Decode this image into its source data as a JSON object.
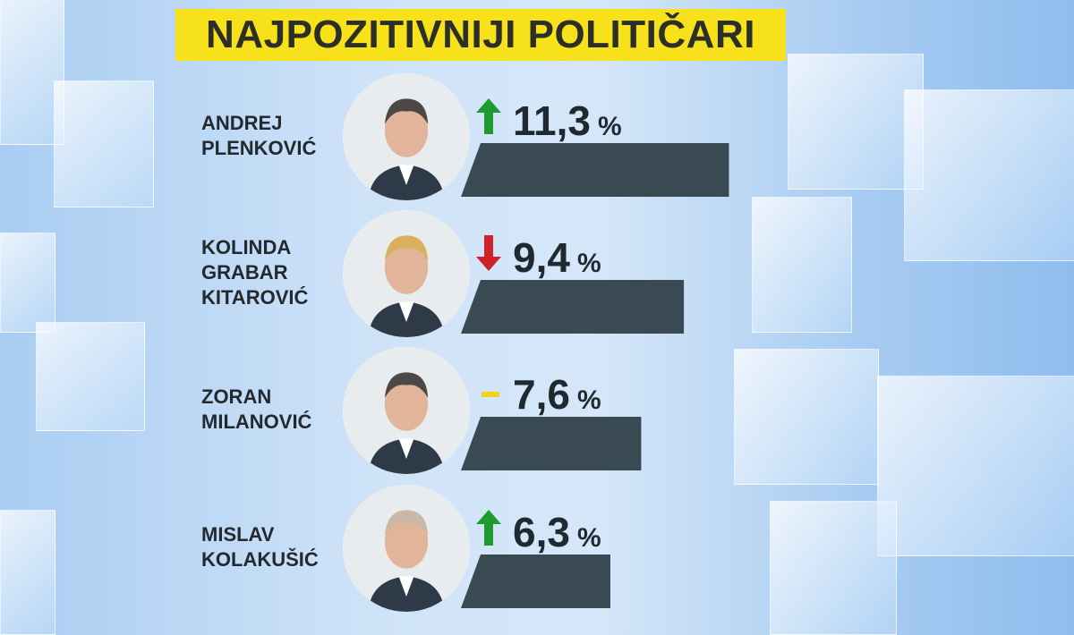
{
  "title": "NAJPOZITIVNIJI POLITIČARI",
  "colors": {
    "bar": "#3a4a52",
    "up": "#1f9a2f",
    "down": "#d0202a",
    "same": "#f2d21a",
    "title_bg": "#f7e11b"
  },
  "chart_data": {
    "type": "bar",
    "orientation": "horizontal",
    "title": "NAJPOZITIVNIJI POLITIČARI",
    "unit": "%",
    "categories": [
      "ANDREJ PLENKOVIĆ",
      "KOLINDA GRABAR KITAROVIĆ",
      "ZORAN MILANOVIĆ",
      "MISLAV KOLAKUŠIĆ"
    ],
    "values": [
      11.3,
      9.4,
      7.6,
      6.3
    ],
    "value_labels": [
      "11,3",
      "9,4",
      "7,6",
      "6,3"
    ],
    "trends": [
      "up",
      "down",
      "same",
      "up"
    ]
  },
  "rows": [
    {
      "name_lines": [
        "ANDREJ",
        "PLENKOVIĆ"
      ],
      "value": "11,3",
      "unit": "%",
      "trend": "up"
    },
    {
      "name_lines": [
        "KOLINDA",
        "GRABAR",
        "KITAROVIĆ"
      ],
      "value": "9,4",
      "unit": "%",
      "trend": "down"
    },
    {
      "name_lines": [
        "ZORAN",
        "MILANOVIĆ"
      ],
      "value": "7,6",
      "unit": "%",
      "trend": "same"
    },
    {
      "name_lines": [
        "MISLAV",
        "KOLAKUŠIĆ"
      ],
      "value": "6,3",
      "unit": "%",
      "trend": "up"
    }
  ]
}
